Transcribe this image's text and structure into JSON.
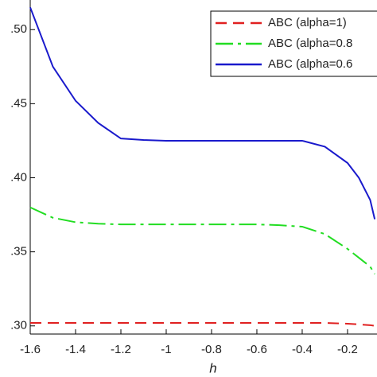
{
  "chart_data": {
    "type": "line",
    "xlabel": "h",
    "x": [
      -1.6,
      -1.5,
      -1.4,
      -1.3,
      -1.2,
      -1.1,
      -1.0,
      -0.9,
      -0.8,
      -0.7,
      -0.6,
      -0.5,
      -0.4,
      -0.3,
      -0.2,
      -0.15,
      -0.1,
      -0.08
    ],
    "series": [
      {
        "name": "ABC (alpha=1)",
        "color": "#e02020",
        "dash": "dashed",
        "values": [
          0.302,
          0.302,
          0.302,
          0.302,
          0.302,
          0.302,
          0.302,
          0.302,
          0.302,
          0.302,
          0.302,
          0.302,
          0.302,
          0.302,
          0.3015,
          0.301,
          0.3005,
          0.3
        ]
      },
      {
        "name": "ABC (alpha=0.8",
        "color": "#22dd22",
        "dash": "dashdot",
        "values": [
          0.38,
          0.373,
          0.37,
          0.369,
          0.3685,
          0.3685,
          0.3685,
          0.3685,
          0.3685,
          0.3685,
          0.3685,
          0.368,
          0.367,
          0.362,
          0.352,
          0.346,
          0.34,
          0.335
        ]
      },
      {
        "name": "ABC (alpha=0.6",
        "color": "#1a1acc",
        "dash": "solid",
        "values": [
          0.515,
          0.475,
          0.452,
          0.437,
          0.4265,
          0.4255,
          0.425,
          0.425,
          0.425,
          0.425,
          0.425,
          0.425,
          0.425,
          0.421,
          0.41,
          0.4,
          0.385,
          0.372
        ]
      }
    ],
    "xlim": [
      -1.6,
      -0.07
    ],
    "ylim": [
      0.2945,
      0.52
    ],
    "xticks": [
      -1.6,
      -1.4,
      -1.2,
      -1,
      -0.8,
      -0.6,
      -0.4,
      -0.2
    ],
    "yticks": [
      {
        "value": 0.3,
        "label": ".30"
      },
      {
        "value": 0.35,
        "label": ".35"
      },
      {
        "value": 0.4,
        "label": ".40"
      },
      {
        "value": 0.45,
        "label": ".45"
      },
      {
        "value": 0.5,
        "label": ".50"
      }
    ],
    "legend": "top-right"
  }
}
